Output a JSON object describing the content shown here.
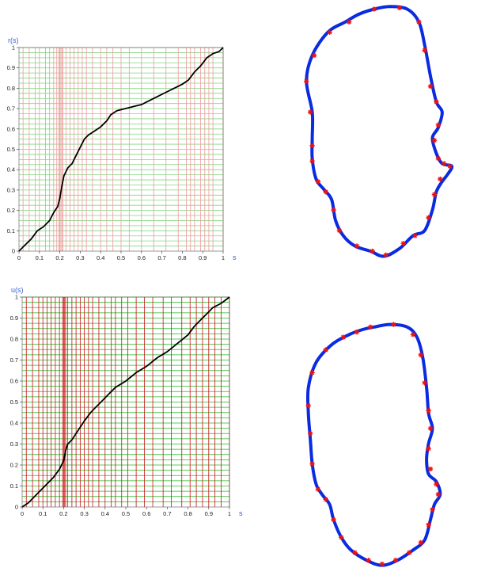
{
  "chart_data": [
    {
      "type": "line",
      "panel": "top-left",
      "xlabel": "s",
      "ylabel": "r(s)",
      "xlim": [
        0,
        1
      ],
      "ylim": [
        0,
        1
      ],
      "x_ticks": [
        "0",
        "0.1",
        "0.2",
        "0.3",
        "0.4",
        "0.5",
        "0.6",
        "0.7",
        "0.8",
        "0.9",
        "1"
      ],
      "y_ticks": [
        "0",
        "0.1",
        "0.2",
        "0.3",
        "0.4",
        "0.5",
        "0.6",
        "0.7",
        "0.8",
        "0.9",
        "1"
      ],
      "curve_color": "#000000",
      "hline_color": "#7fd87f",
      "vline_color": "#ef9a9a",
      "curve": [
        [
          0,
          0
        ],
        [
          0.03,
          0.03
        ],
        [
          0.06,
          0.06
        ],
        [
          0.09,
          0.1
        ],
        [
          0.12,
          0.12
        ],
        [
          0.15,
          0.15
        ],
        [
          0.17,
          0.19
        ],
        [
          0.19,
          0.22
        ],
        [
          0.2,
          0.26
        ],
        [
          0.21,
          0.32
        ],
        [
          0.22,
          0.37
        ],
        [
          0.24,
          0.41
        ],
        [
          0.26,
          0.43
        ],
        [
          0.28,
          0.47
        ],
        [
          0.3,
          0.51
        ],
        [
          0.32,
          0.55
        ],
        [
          0.34,
          0.57
        ],
        [
          0.37,
          0.59
        ],
        [
          0.4,
          0.61
        ],
        [
          0.43,
          0.64
        ],
        [
          0.45,
          0.67
        ],
        [
          0.48,
          0.69
        ],
        [
          0.52,
          0.7
        ],
        [
          0.56,
          0.71
        ],
        [
          0.6,
          0.72
        ],
        [
          0.64,
          0.74
        ],
        [
          0.68,
          0.76
        ],
        [
          0.72,
          0.78
        ],
        [
          0.76,
          0.8
        ],
        [
          0.8,
          0.82
        ],
        [
          0.83,
          0.84
        ],
        [
          0.86,
          0.88
        ],
        [
          0.89,
          0.91
        ],
        [
          0.92,
          0.95
        ],
        [
          0.95,
          0.97
        ],
        [
          0.98,
          0.98
        ],
        [
          1,
          1
        ]
      ],
      "hlines": [
        0.025,
        0.05,
        0.075,
        0.1,
        0.125,
        0.15,
        0.175,
        0.2,
        0.225,
        0.25,
        0.275,
        0.3,
        0.325,
        0.35,
        0.375,
        0.4,
        0.425,
        0.45,
        0.475,
        0.5,
        0.525,
        0.55,
        0.575,
        0.6,
        0.625,
        0.65,
        0.675,
        0.7,
        0.725,
        0.75,
        0.775,
        0.8,
        0.825,
        0.85,
        0.875,
        0.9,
        0.925,
        0.95,
        0.975,
        1
      ],
      "vlines": [
        0.02,
        0.05,
        0.08,
        0.1,
        0.13,
        0.15,
        0.17,
        0.185,
        0.195,
        0.2,
        0.205,
        0.21,
        0.215,
        0.23,
        0.25,
        0.27,
        0.29,
        0.31,
        0.33,
        0.36,
        0.4,
        0.43,
        0.46,
        0.5,
        0.54,
        0.6,
        0.66,
        0.72,
        0.78,
        0.82,
        0.84,
        0.86,
        0.89,
        0.91,
        0.93,
        0.95,
        1
      ]
    },
    {
      "type": "line",
      "panel": "bottom-left",
      "xlabel": "s",
      "ylabel": "u(s)",
      "xlim": [
        0,
        1
      ],
      "ylim": [
        0,
        1
      ],
      "x_ticks": [
        "0",
        "0.1",
        "0.2",
        "0.3",
        "0.4",
        "0.5",
        "0.6",
        "0.7",
        "0.8",
        "0.9",
        "1"
      ],
      "y_ticks": [
        "0",
        "0.1",
        "0.2",
        "0.3",
        "0.4",
        "0.5",
        "0.6",
        "0.7",
        "0.8",
        "0.9",
        "1"
      ],
      "curve_color": "#000000",
      "hline_color": "#22bb22",
      "vline_color": "#cc1111",
      "curve": [
        [
          0,
          0
        ],
        [
          0.03,
          0.02
        ],
        [
          0.06,
          0.05
        ],
        [
          0.09,
          0.08
        ],
        [
          0.12,
          0.11
        ],
        [
          0.15,
          0.14
        ],
        [
          0.18,
          0.18
        ],
        [
          0.2,
          0.22
        ],
        [
          0.21,
          0.27
        ],
        [
          0.22,
          0.3
        ],
        [
          0.24,
          0.32
        ],
        [
          0.26,
          0.35
        ],
        [
          0.28,
          0.38
        ],
        [
          0.3,
          0.41
        ],
        [
          0.33,
          0.45
        ],
        [
          0.36,
          0.48
        ],
        [
          0.39,
          0.51
        ],
        [
          0.42,
          0.54
        ],
        [
          0.45,
          0.57
        ],
        [
          0.5,
          0.6
        ],
        [
          0.55,
          0.64
        ],
        [
          0.6,
          0.67
        ],
        [
          0.65,
          0.71
        ],
        [
          0.7,
          0.74
        ],
        [
          0.75,
          0.78
        ],
        [
          0.8,
          0.82
        ],
        [
          0.83,
          0.86
        ],
        [
          0.86,
          0.89
        ],
        [
          0.89,
          0.92
        ],
        [
          0.92,
          0.95
        ],
        [
          0.96,
          0.97
        ],
        [
          1,
          1
        ]
      ],
      "hlines": [
        0.025,
        0.05,
        0.075,
        0.1,
        0.125,
        0.15,
        0.175,
        0.2,
        0.225,
        0.25,
        0.275,
        0.3,
        0.325,
        0.35,
        0.375,
        0.4,
        0.425,
        0.45,
        0.475,
        0.5,
        0.525,
        0.55,
        0.575,
        0.6,
        0.625,
        0.65,
        0.675,
        0.7,
        0.725,
        0.75,
        0.775,
        0.8,
        0.825,
        0.85,
        0.875,
        0.9,
        0.925,
        0.95,
        0.975,
        1
      ],
      "vlines": [
        0.02,
        0.05,
        0.08,
        0.1,
        0.12,
        0.14,
        0.16,
        0.18,
        0.195,
        0.2,
        0.205,
        0.21,
        0.22,
        0.24,
        0.26,
        0.28,
        0.3,
        0.32,
        0.34,
        0.37,
        0.4,
        0.43,
        0.45,
        0.48,
        0.51,
        0.55,
        0.59,
        0.63,
        0.68,
        0.72,
        0.77,
        0.81,
        0.84,
        0.87,
        0.9,
        0.93,
        0.96,
        1
      ]
    },
    {
      "type": "scatter",
      "panel": "top-right",
      "shape_color": "#0a2be0",
      "marker_color": "#ee1111",
      "outline": [
        [
          0.4,
          0.02
        ],
        [
          0.48,
          0.01
        ],
        [
          0.57,
          0.02
        ],
        [
          0.63,
          0.07
        ],
        [
          0.66,
          0.16
        ],
        [
          0.69,
          0.28
        ],
        [
          0.72,
          0.38
        ],
        [
          0.75,
          0.42
        ],
        [
          0.73,
          0.48
        ],
        [
          0.7,
          0.52
        ],
        [
          0.72,
          0.58
        ],
        [
          0.75,
          0.62
        ],
        [
          0.8,
          0.63
        ],
        [
          0.78,
          0.66
        ],
        [
          0.75,
          0.69
        ],
        [
          0.72,
          0.73
        ],
        [
          0.7,
          0.8
        ],
        [
          0.66,
          0.88
        ],
        [
          0.6,
          0.9
        ],
        [
          0.53,
          0.95
        ],
        [
          0.45,
          0.98
        ],
        [
          0.38,
          0.96
        ],
        [
          0.3,
          0.94
        ],
        [
          0.24,
          0.9
        ],
        [
          0.2,
          0.84
        ],
        [
          0.18,
          0.76
        ],
        [
          0.14,
          0.72
        ],
        [
          0.1,
          0.68
        ],
        [
          0.08,
          0.6
        ],
        [
          0.08,
          0.52
        ],
        [
          0.08,
          0.42
        ],
        [
          0.05,
          0.3
        ],
        [
          0.08,
          0.2
        ],
        [
          0.16,
          0.11
        ],
        [
          0.25,
          0.07
        ],
        [
          0.32,
          0.04
        ]
      ],
      "markers": [
        [
          0.4,
          0.02
        ],
        [
          0.53,
          0.015
        ],
        [
          0.63,
          0.07
        ],
        [
          0.66,
          0.18
        ],
        [
          0.69,
          0.32
        ],
        [
          0.72,
          0.38
        ],
        [
          0.73,
          0.47
        ],
        [
          0.71,
          0.53
        ],
        [
          0.73,
          0.6
        ],
        [
          0.76,
          0.62
        ],
        [
          0.79,
          0.63
        ],
        [
          0.74,
          0.68
        ],
        [
          0.71,
          0.74
        ],
        [
          0.68,
          0.83
        ],
        [
          0.61,
          0.9
        ],
        [
          0.55,
          0.93
        ],
        [
          0.46,
          0.975
        ],
        [
          0.39,
          0.96
        ],
        [
          0.31,
          0.94
        ],
        [
          0.22,
          0.88
        ],
        [
          0.19,
          0.8
        ],
        [
          0.15,
          0.73
        ],
        [
          0.11,
          0.69
        ],
        [
          0.08,
          0.61
        ],
        [
          0.08,
          0.55
        ],
        [
          0.07,
          0.42
        ],
        [
          0.05,
          0.3
        ],
        [
          0.09,
          0.2
        ],
        [
          0.17,
          0.11
        ],
        [
          0.27,
          0.07
        ]
      ]
    },
    {
      "type": "scatter",
      "panel": "bottom-right",
      "shape_color": "#0a2be0",
      "marker_color": "#ee1111",
      "outline": [
        [
          0.4,
          0.04
        ],
        [
          0.48,
          0.03
        ],
        [
          0.57,
          0.04
        ],
        [
          0.62,
          0.08
        ],
        [
          0.65,
          0.16
        ],
        [
          0.67,
          0.28
        ],
        [
          0.68,
          0.38
        ],
        [
          0.7,
          0.44
        ],
        [
          0.68,
          0.5
        ],
        [
          0.67,
          0.56
        ],
        [
          0.68,
          0.62
        ],
        [
          0.72,
          0.65
        ],
        [
          0.74,
          0.7
        ],
        [
          0.71,
          0.74
        ],
        [
          0.69,
          0.8
        ],
        [
          0.66,
          0.88
        ],
        [
          0.6,
          0.92
        ],
        [
          0.52,
          0.96
        ],
        [
          0.44,
          0.98
        ],
        [
          0.36,
          0.96
        ],
        [
          0.28,
          0.92
        ],
        [
          0.23,
          0.87
        ],
        [
          0.19,
          0.8
        ],
        [
          0.17,
          0.74
        ],
        [
          0.13,
          0.7
        ],
        [
          0.1,
          0.66
        ],
        [
          0.08,
          0.58
        ],
        [
          0.07,
          0.48
        ],
        [
          0.06,
          0.38
        ],
        [
          0.06,
          0.28
        ],
        [
          0.1,
          0.18
        ],
        [
          0.18,
          0.11
        ],
        [
          0.27,
          0.07
        ],
        [
          0.34,
          0.05
        ]
      ],
      "markers": [
        [
          0.38,
          0.04
        ],
        [
          0.5,
          0.03
        ],
        [
          0.6,
          0.07
        ],
        [
          0.64,
          0.15
        ],
        [
          0.66,
          0.26
        ],
        [
          0.68,
          0.37
        ],
        [
          0.69,
          0.44
        ],
        [
          0.68,
          0.52
        ],
        [
          0.69,
          0.6
        ],
        [
          0.72,
          0.66
        ],
        [
          0.73,
          0.7
        ],
        [
          0.7,
          0.76
        ],
        [
          0.68,
          0.82
        ],
        [
          0.64,
          0.89
        ],
        [
          0.58,
          0.93
        ],
        [
          0.51,
          0.96
        ],
        [
          0.44,
          0.975
        ],
        [
          0.37,
          0.96
        ],
        [
          0.3,
          0.93
        ],
        [
          0.23,
          0.87
        ],
        [
          0.19,
          0.8
        ],
        [
          0.15,
          0.72
        ],
        [
          0.11,
          0.68
        ],
        [
          0.08,
          0.58
        ],
        [
          0.07,
          0.46
        ],
        [
          0.06,
          0.35
        ],
        [
          0.08,
          0.22
        ],
        [
          0.15,
          0.13
        ],
        [
          0.24,
          0.08
        ],
        [
          0.31,
          0.06
        ]
      ]
    }
  ]
}
